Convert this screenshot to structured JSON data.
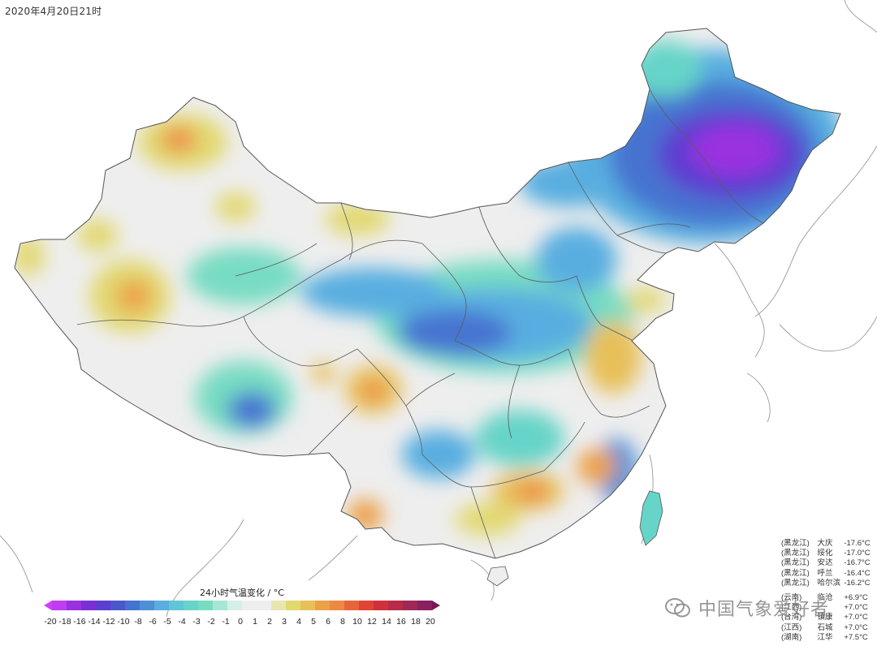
{
  "timestamp": "2020年4月20日21时",
  "legend": {
    "title": "24小时气温变化 / °C",
    "ticks": [
      "-20",
      "-18",
      "-16",
      "-14",
      "-12",
      "-10",
      "-8",
      "-6",
      "-5",
      "-4",
      "-3",
      "-2",
      "-1",
      "0",
      "1",
      "2",
      "3",
      "4",
      "5",
      "6",
      "8",
      "10",
      "12",
      "14",
      "16",
      "18",
      "20"
    ],
    "colors": [
      "#c03cf0",
      "#9a30e0",
      "#7a2fd6",
      "#5d3ed0",
      "#4b58cc",
      "#4673d0",
      "#4d90d6",
      "#59aee0",
      "#5fc6d8",
      "#66d4c8",
      "#77dcc2",
      "#a6e6d6",
      "#d6eee8",
      "#eeeeee",
      "#eeeeee",
      "#e8e6b0",
      "#e2d870",
      "#e8c05a",
      "#eca048",
      "#ec8a44",
      "#e8643c",
      "#e04436",
      "#d0303c",
      "#b82c48",
      "#a02858",
      "#8a2060"
    ]
  },
  "stations_cold": [
    {
      "province": "(黑龙江)",
      "city": "大庆",
      "value": "-17.6°C"
    },
    {
      "province": "(黑龙江)",
      "city": "绥化",
      "value": "-17.0°C"
    },
    {
      "province": "(黑龙江)",
      "city": "安达",
      "value": "-16.7°C"
    },
    {
      "province": "(黑龙江)",
      "city": "呼兰",
      "value": "-16.4°C"
    },
    {
      "province": "(黑龙江)",
      "city": "哈尔滨",
      "value": "-16.2°C"
    }
  ],
  "stations_warm": [
    {
      "province": "(云南)",
      "city": "临沧",
      "value": "+6.9°C"
    },
    {
      "province": "(江西)",
      "city": "",
      "value": "+7.0°C"
    },
    {
      "province": "(台湾)",
      "city": "镇康",
      "value": "+7.0°C"
    },
    {
      "province": "(江西)",
      "city": "石城",
      "value": "+7.0°C"
    },
    {
      "province": "(湖南)",
      "city": "江华",
      "value": "+7.5°C"
    }
  ],
  "watermark": "中国气象爱好者",
  "icons": {
    "watermark": "wechat-icon"
  }
}
